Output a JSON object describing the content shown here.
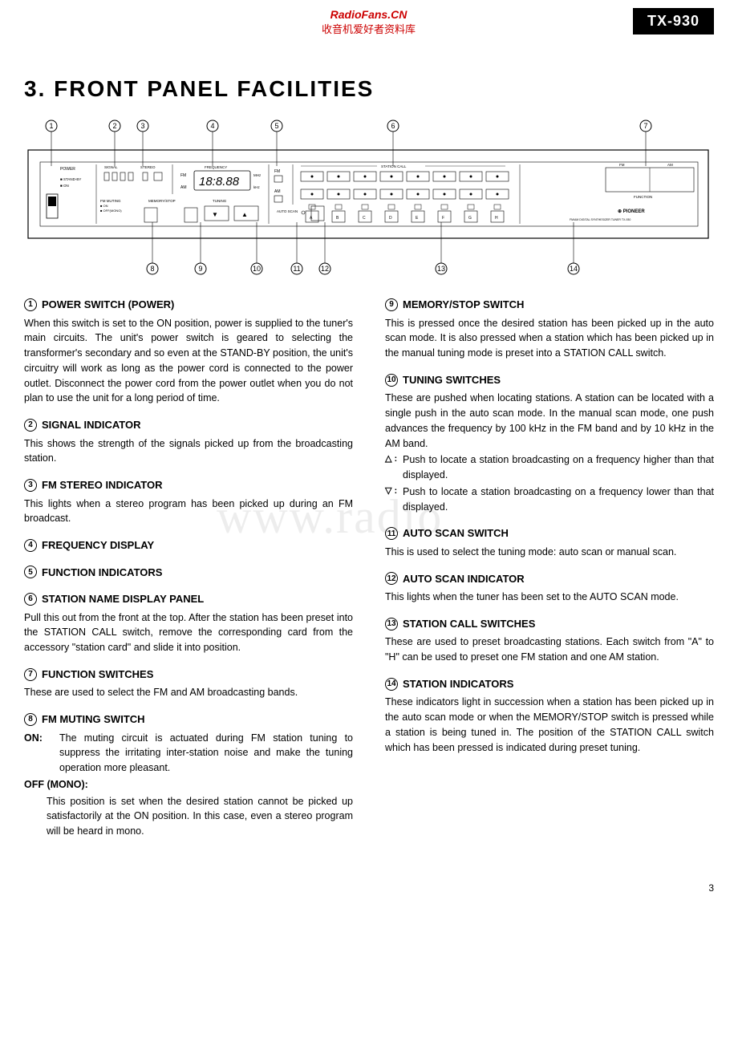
{
  "header": {
    "watermark_title": "RadioFans.CN",
    "watermark_sub": "收音机爱好者资料库",
    "model": "TX-930"
  },
  "title": "3.  FRONT PANEL FACILITIES",
  "bg_watermark": "www.radio",
  "page_number": "3",
  "diagram": {
    "top_callouts": [
      "1",
      "2",
      "3",
      "4",
      "5",
      "6",
      "7"
    ],
    "bottom_callouts": [
      "8",
      "9",
      "10",
      "11",
      "12",
      "13",
      "14"
    ],
    "labels": {
      "power": "POWER",
      "standby": "STAND-BY",
      "on": "ON",
      "signal": "SIGNAL",
      "stereo": "STEREO",
      "frequency": "FREQUENCY",
      "freq_digits": "18:8.88",
      "fm": "FM",
      "am": "AM",
      "mhz": "MHz",
      "khz": "kHz",
      "fm_muting": "FM MUTING",
      "tuning": "TUNING",
      "memory_stop": "MEMORY/STOP",
      "auto_scan": "AUTO SCAN",
      "station_call": "STATION CALL",
      "function": "FUNCTION",
      "brand": "PIONEER",
      "desc": "FM/AM DIGITAL SYNTHESIZER TUNER TX-930",
      "station_letters": [
        "A",
        "B",
        "C",
        "D",
        "E",
        "F",
        "G",
        "H"
      ]
    }
  },
  "left": [
    {
      "n": "1",
      "h": "POWER SWITCH (POWER)",
      "b": "When this switch is set to the ON position, power is supplied to the tuner's main circuits. The unit's power switch is geared to selecting the transformer's secondary and so even at the STAND-BY position, the unit's circuitry will work as long as the power cord is connected to the power outlet. Disconnect the power cord from the power outlet when you do not plan to use the unit for a long period of time."
    },
    {
      "n": "2",
      "h": "SIGNAL INDICATOR",
      "b": "This shows the strength of the signals picked up from the broadcasting station."
    },
    {
      "n": "3",
      "h": "FM STEREO INDICATOR",
      "b": "This lights when a stereo program has been picked up during an FM broadcast."
    },
    {
      "n": "4",
      "h": "FREQUENCY DISPLAY",
      "b": ""
    },
    {
      "n": "5",
      "h": "FUNCTION INDICATORS",
      "b": ""
    },
    {
      "n": "6",
      "h": "STATION NAME DISPLAY PANEL",
      "b": "Pull this out from the front at the top. After the station has been preset into the STATION CALL switch, remove the corresponding card from the accessory \"station card\" and slide it into position."
    },
    {
      "n": "7",
      "h": "FUNCTION SWITCHES",
      "b": "These are used to select the FM and AM broadcasting bands."
    },
    {
      "n": "8",
      "h": "FM MUTING SWITCH",
      "b": "",
      "subs": [
        {
          "l": "ON:",
          "t": "The muting circuit is actuated during FM station tuning to suppress the irritating inter-station noise and make the tuning operation more pleasant."
        },
        {
          "l": "OFF (MONO):",
          "t": "This position is set when the desired station cannot be picked up satisfactorily at the ON position. In this case, even a stereo program will be heard in mono.",
          "break": true
        }
      ]
    }
  ],
  "right": [
    {
      "n": "9",
      "h": "MEMORY/STOP SWITCH",
      "b": "This is pressed once the desired station has been picked up in the auto scan mode. It is also pressed when a station which has been picked up in the manual tuning mode is preset into a STATION CALL switch."
    },
    {
      "n": "10",
      "h": "TUNING SWITCHES",
      "b": "These are pushed when locating stations. A station can be located with a single push in the auto scan mode. In the manual scan mode, one push advances the frequency by 100 kHz in the FM band and by 10 kHz in the AM band.",
      "subs": [
        {
          "l": "△ :",
          "t": "Push to locate a station broadcasting on a frequency higher than that displayed.",
          "tri": true
        },
        {
          "l": "▽ :",
          "t": "Push to locate a station broadcasting on a frequency lower than that displayed.",
          "tri": true
        }
      ]
    },
    {
      "n": "11",
      "h": "AUTO SCAN SWITCH",
      "b": "This is used to select the tuning mode: auto scan or manual scan."
    },
    {
      "n": "12",
      "h": "AUTO SCAN INDICATOR",
      "b": "This lights when the tuner has been set to the AUTO SCAN mode."
    },
    {
      "n": "13",
      "h": "STATION CALL SWITCHES",
      "b": "These are used to preset broadcasting stations. Each switch from \"A\" to \"H\" can be used to preset one FM station and one AM station."
    },
    {
      "n": "14",
      "h": "STATION INDICATORS",
      "b": "These indicators light in succession when a station has been picked up in the auto scan mode or when the MEMORY/STOP switch is pressed while a station is being tuned in. The position of the STATION CALL switch which has been pressed is indicated during preset tuning."
    }
  ]
}
